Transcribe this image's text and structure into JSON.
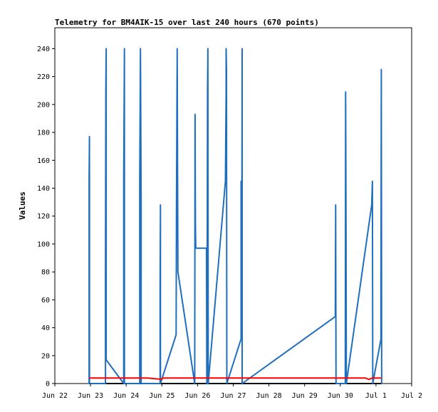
{
  "chart_data": {
    "type": "line",
    "title": "Telemetry for BM4AIK-15 over last 240 hours (670 points)",
    "xlabel": "",
    "ylabel": "Values",
    "xlim": [
      22.0,
      32.0
    ],
    "ylim": [
      0,
      255
    ],
    "grid": false,
    "x_ticks": [
      {
        "v": 22,
        "label": "Jun 22"
      },
      {
        "v": 23,
        "label": "Jun 23"
      },
      {
        "v": 24,
        "label": "Jun 24"
      },
      {
        "v": 25,
        "label": "Jun 25"
      },
      {
        "v": 26,
        "label": "Jun 26"
      },
      {
        "v": 27,
        "label": "Jun 27"
      },
      {
        "v": 28,
        "label": "Jun 28"
      },
      {
        "v": 29,
        "label": "Jun 29"
      },
      {
        "v": 30,
        "label": "Jun 30"
      },
      {
        "v": 31,
        "label": "Jul 1"
      },
      {
        "v": 32,
        "label": "Jul 2"
      }
    ],
    "y_ticks": [
      0,
      20,
      40,
      60,
      80,
      100,
      120,
      140,
      160,
      180,
      200,
      220,
      240
    ],
    "colors": {
      "blue": "#1f6fbf",
      "red": "#ff0000",
      "black": "#000000",
      "frame": "#000000"
    },
    "series": [
      {
        "color": "blue",
        "points": [
          [
            22.96,
            0
          ],
          [
            22.96,
            145
          ],
          [
            22.97,
            177
          ],
          [
            22.97,
            0
          ],
          [
            23.42,
            0
          ],
          [
            23.42,
            80
          ],
          [
            23.43,
            209
          ],
          [
            23.44,
            240
          ],
          [
            23.44,
            17
          ],
          [
            23.93,
            0
          ],
          [
            23.93,
            145
          ],
          [
            23.95,
            240
          ],
          [
            23.95,
            0
          ],
          [
            24.38,
            0
          ],
          [
            24.38,
            145
          ],
          [
            24.4,
            240
          ],
          [
            24.42,
            128
          ],
          [
            24.42,
            0
          ],
          [
            24.95,
            0
          ],
          [
            24.95,
            65
          ],
          [
            24.96,
            128
          ],
          [
            24.96,
            0
          ],
          [
            25.4,
            35
          ],
          [
            25.41,
            128
          ],
          [
            25.43,
            240
          ],
          [
            25.45,
            80
          ],
          [
            25.92,
            0
          ],
          [
            25.92,
            0
          ],
          [
            25.93,
            193
          ],
          [
            25.94,
            113
          ],
          [
            25.95,
            97
          ],
          [
            26.25,
            97
          ],
          [
            26.26,
            0
          ],
          [
            26.26,
            0
          ],
          [
            26.27,
            80
          ],
          [
            26.28,
            209
          ],
          [
            26.29,
            240
          ],
          [
            26.3,
            0
          ],
          [
            26.78,
            145
          ],
          [
            26.8,
            209
          ],
          [
            26.8,
            240
          ],
          [
            26.81,
            225
          ],
          [
            26.82,
            0
          ],
          [
            27.22,
            32
          ],
          [
            27.22,
            145
          ],
          [
            27.24,
            80
          ],
          [
            27.25,
            240
          ],
          [
            27.25,
            0
          ],
          [
            29.86,
            48
          ],
          [
            29.87,
            128
          ],
          [
            29.88,
            0
          ],
          [
            30.14,
            0
          ],
          [
            30.15,
            209
          ],
          [
            30.16,
            128
          ],
          [
            30.17,
            0
          ],
          [
            30.88,
            128
          ],
          [
            30.88,
            128
          ],
          [
            30.9,
            145
          ],
          [
            30.91,
            0
          ],
          [
            31.14,
            32
          ],
          [
            31.14,
            80
          ],
          [
            31.15,
            225
          ],
          [
            31.16,
            0
          ]
        ]
      },
      {
        "color": "red",
        "points": [
          [
            22.96,
            4
          ],
          [
            24.6,
            4
          ],
          [
            25.0,
            3
          ],
          [
            25.02,
            4
          ],
          [
            30.7,
            4
          ],
          [
            30.8,
            3
          ],
          [
            30.9,
            4
          ],
          [
            31.15,
            4
          ]
        ]
      },
      {
        "color": "black",
        "points": [
          [
            22.96,
            0
          ],
          [
            31.15,
            0
          ]
        ]
      }
    ]
  }
}
